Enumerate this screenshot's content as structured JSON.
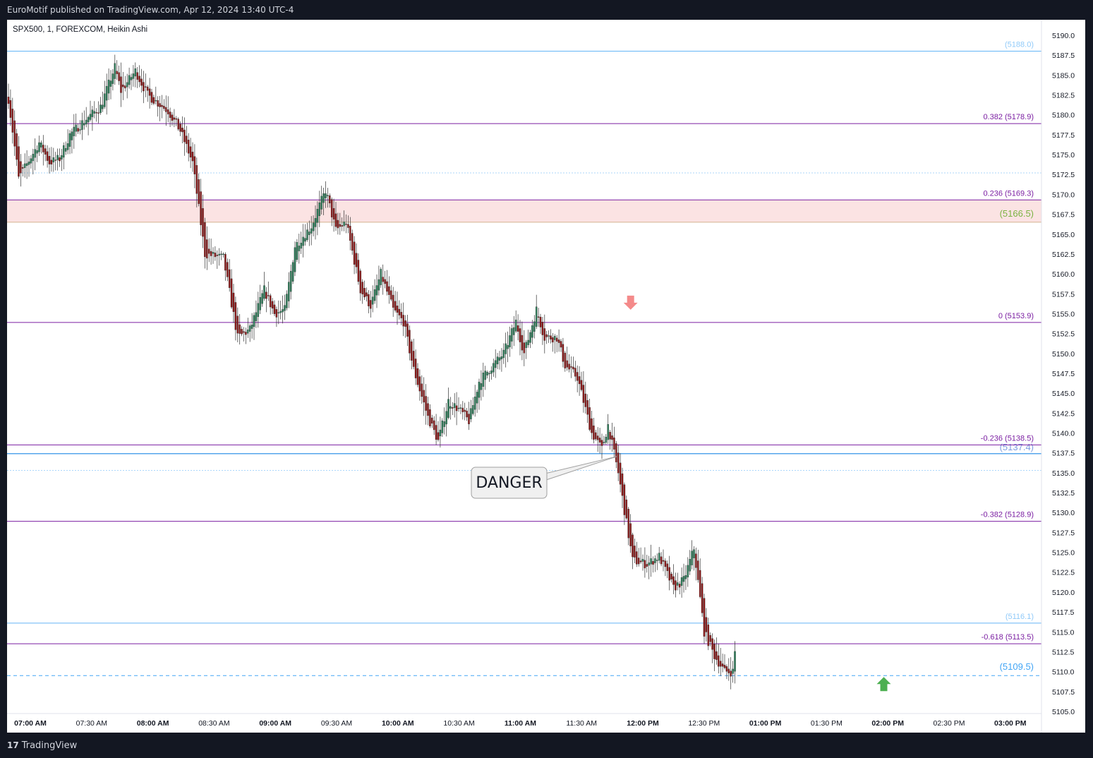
{
  "header": {
    "published": "EuroMotif published on TradingView.com, Apr 12, 2024 13:40 UTC-4"
  },
  "footer": {
    "brand": "TradingView"
  },
  "chart_data": {
    "type": "candlestick",
    "style": "Heikin Ashi",
    "title": "SPX500, 1, FOREXCOM, Heikin Ashi",
    "y_axis_side": "right",
    "ylim": [
      5103,
      5192
    ],
    "y_ticks": [
      5105.0,
      5107.5,
      5110.0,
      5112.5,
      5115.0,
      5117.5,
      5120.0,
      5122.5,
      5125.0,
      5127.5,
      5130.0,
      5132.5,
      5135.0,
      5137.5,
      5140.0,
      5142.5,
      5145.0,
      5147.5,
      5150.0,
      5152.5,
      5155.0,
      5157.5,
      5160.0,
      5162.5,
      5165.0,
      5167.5,
      5170.0,
      5172.5,
      5175.0,
      5177.5,
      5180.0,
      5182.5,
      5185.0,
      5187.5,
      5190.0
    ],
    "y_tick_labels": [
      "5105.0",
      "5107.5",
      "5110.0",
      "5112.5",
      "5115.0",
      "5117.5",
      "5120.0",
      "5122.5",
      "5125.0",
      "5127.5",
      "5130.0",
      "5132.5",
      "5135.0",
      "5137.5",
      "5140.0",
      "5142.5",
      "5145.0",
      "5147.5",
      "5150.0",
      "5152.5",
      "5155.0",
      "5157.5",
      "5160.0",
      "5162.5",
      "5165.0",
      "5167.5",
      "5170.0",
      "5172.5",
      "5175.0",
      "5177.5",
      "5180.0",
      "5182.5",
      "5185.0",
      "5187.5",
      "5190.0"
    ],
    "x_labels": [
      "07:00 AM",
      "07:30 AM",
      "08:00 AM",
      "08:30 AM",
      "09:00 AM",
      "09:30 AM",
      "10:00 AM",
      "10:30 AM",
      "11:00 AM",
      "11:30 AM",
      "12:00 PM",
      "12:30 PM",
      "01:00 PM",
      "01:30 PM",
      "02:00 PM",
      "02:30 PM",
      "03:00 PM"
    ],
    "x_labels_bold": [
      true,
      false,
      true,
      false,
      true,
      false,
      true,
      false,
      true,
      false,
      true,
      false,
      true,
      false,
      true,
      false,
      true
    ],
    "series_close_path": [
      {
        "t": 0,
        "v": 5182
      },
      {
        "t": 5,
        "v": 5172
      },
      {
        "t": 15,
        "v": 5176.5
      },
      {
        "t": 20,
        "v": 5174
      },
      {
        "t": 25,
        "v": 5174.5
      },
      {
        "t": 30,
        "v": 5177.5
      },
      {
        "t": 38,
        "v": 5179.5
      },
      {
        "t": 45,
        "v": 5181
      },
      {
        "t": 52,
        "v": 5186
      },
      {
        "t": 55,
        "v": 5183
      },
      {
        "t": 62,
        "v": 5185.5
      },
      {
        "t": 68,
        "v": 5182.5
      },
      {
        "t": 78,
        "v": 5180.5
      },
      {
        "t": 84,
        "v": 5178
      },
      {
        "t": 90,
        "v": 5174
      },
      {
        "t": 96,
        "v": 5162.5
      },
      {
        "t": 105,
        "v": 5162
      },
      {
        "t": 112,
        "v": 5152
      },
      {
        "t": 118,
        "v": 5153
      },
      {
        "t": 125,
        "v": 5158
      },
      {
        "t": 130,
        "v": 5155
      },
      {
        "t": 135,
        "v": 5155.5
      },
      {
        "t": 140,
        "v": 5163.5
      },
      {
        "t": 148,
        "v": 5166
      },
      {
        "t": 155,
        "v": 5170.5
      },
      {
        "t": 160,
        "v": 5165.5
      },
      {
        "t": 165,
        "v": 5166.5
      },
      {
        "t": 172,
        "v": 5158
      },
      {
        "t": 177,
        "v": 5156
      },
      {
        "t": 182,
        "v": 5160
      },
      {
        "t": 188,
        "v": 5155.5
      },
      {
        "t": 193,
        "v": 5154
      },
      {
        "t": 198,
        "v": 5148
      },
      {
        "t": 205,
        "v": 5142
      },
      {
        "t": 210,
        "v": 5139
      },
      {
        "t": 215,
        "v": 5144
      },
      {
        "t": 220,
        "v": 5143
      },
      {
        "t": 225,
        "v": 5141.5
      },
      {
        "t": 230,
        "v": 5146.5
      },
      {
        "t": 235,
        "v": 5148
      },
      {
        "t": 242,
        "v": 5150
      },
      {
        "t": 248,
        "v": 5154
      },
      {
        "t": 252,
        "v": 5150
      },
      {
        "t": 258,
        "v": 5155.5
      },
      {
        "t": 262,
        "v": 5152
      },
      {
        "t": 268,
        "v": 5152
      },
      {
        "t": 272,
        "v": 5148.5
      },
      {
        "t": 278,
        "v": 5147
      },
      {
        "t": 285,
        "v": 5140
      },
      {
        "t": 290,
        "v": 5138
      },
      {
        "t": 293,
        "v": 5141
      },
      {
        "t": 298,
        "v": 5135
      },
      {
        "t": 305,
        "v": 5124
      },
      {
        "t": 312,
        "v": 5123.5
      },
      {
        "t": 318,
        "v": 5124.5
      },
      {
        "t": 325,
        "v": 5120.5
      },
      {
        "t": 330,
        "v": 5121.5
      },
      {
        "t": 335,
        "v": 5125.5
      },
      {
        "t": 340,
        "v": 5115
      },
      {
        "t": 345,
        "v": 5112
      },
      {
        "t": 350,
        "v": 5110
      },
      {
        "t": 354,
        "v": 5110
      },
      {
        "t": 355,
        "v": 5112.5
      }
    ],
    "fib_levels": [
      {
        "label": "0.382 (5178.9)",
        "value": 5178.9
      },
      {
        "label": "0.236 (5169.3)",
        "value": 5169.3
      },
      {
        "label": "0 (5153.9)",
        "value": 5153.9
      },
      {
        "label": "-0.236 (5138.5)",
        "value": 5138.5
      },
      {
        "label": "-0.382 (5128.9)",
        "value": 5128.9
      },
      {
        "label": "-0.618 (5113.5)",
        "value": 5113.5
      }
    ],
    "price_lines": [
      {
        "label": "(5188.0)",
        "value": 5188.0
      },
      {
        "label": "(5166.5)",
        "value": 5166.5
      },
      {
        "label": "(5137.4)",
        "value": 5137.4
      },
      {
        "label": "(5116.1)",
        "value": 5116.1
      },
      {
        "label": "(5109.5)",
        "value": 5109.5
      }
    ],
    "zone": {
      "from": 5166.5,
      "to": 5169.3
    },
    "annotations": [
      {
        "text": "DANGER",
        "points_to": 5137.4
      },
      {
        "type": "arrow-down",
        "at": 5155.0,
        "time": "12:03 PM"
      },
      {
        "type": "arrow-up",
        "at": 5107.5,
        "time": "01:55 PM"
      }
    ],
    "colors": {
      "up": "#2e7d5a",
      "down": "#8b1a1a",
      "fib": "#7b1fa2",
      "price_line": "#64b5f6",
      "zone": "#fbe3e3",
      "arrow_down": "#f48a8a",
      "arrow_up": "#4caf50",
      "background": "#ffffff",
      "frame": "#131722"
    }
  }
}
